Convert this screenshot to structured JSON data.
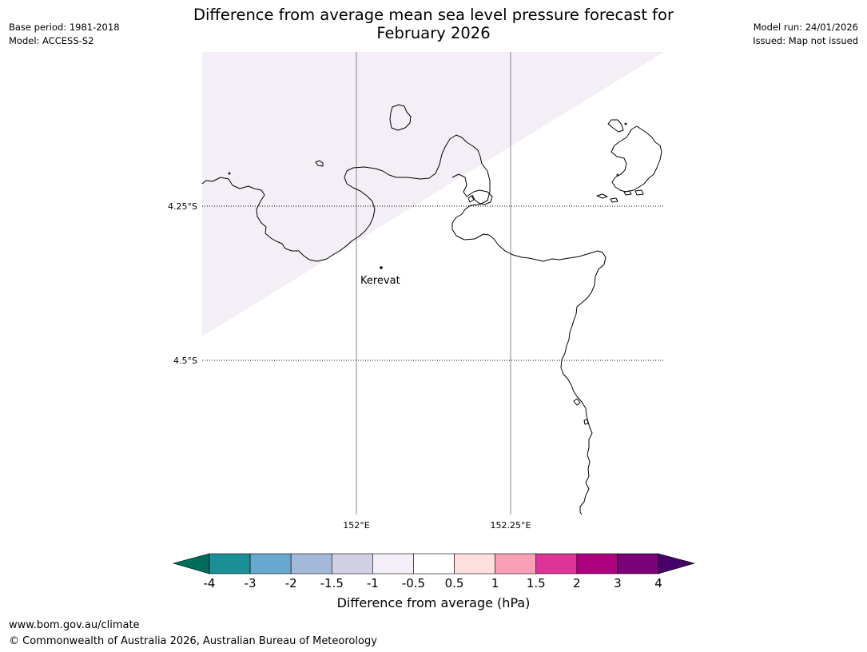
{
  "title": {
    "line1": "Difference from average mean sea level pressure forecast for",
    "line2": "February 2026"
  },
  "meta_left": {
    "base_period": "Base period: 1981-2018",
    "model": "Model: ACCESS-S2"
  },
  "meta_right": {
    "model_run": "Model run: 24/01/2026",
    "issued": "Issued: Map not issued"
  },
  "map": {
    "lat_labels": [
      "4.25°S",
      "4.5°S"
    ],
    "lon_labels": [
      "152°E",
      "152.25°E"
    ],
    "place": {
      "name": "Kerevat"
    },
    "shaded_category": "-1 to -0.5 hPa"
  },
  "colorbar": {
    "ticks": [
      "-4",
      "-3",
      "-2",
      "-1.5",
      "-1",
      "-0.5",
      "0.5",
      "1",
      "1.5",
      "2",
      "3",
      "4"
    ],
    "colors": [
      "#1a9096",
      "#68a8d0",
      "#a4b9da",
      "#d0cfe4",
      "#f4eef8",
      "#ffffff",
      "#fde0dd",
      "#f9a0b6",
      "#dd3497",
      "#ae017e",
      "#7a0177"
    ],
    "extend_low_color": "#016c59",
    "extend_high_color": "#49006a",
    "label": "Difference from average (hPa)"
  },
  "footer": {
    "url": "www.bom.gov.au/climate",
    "copyright": "© Commonwealth of Australia 2026, Australian Bureau of Meteorology"
  }
}
